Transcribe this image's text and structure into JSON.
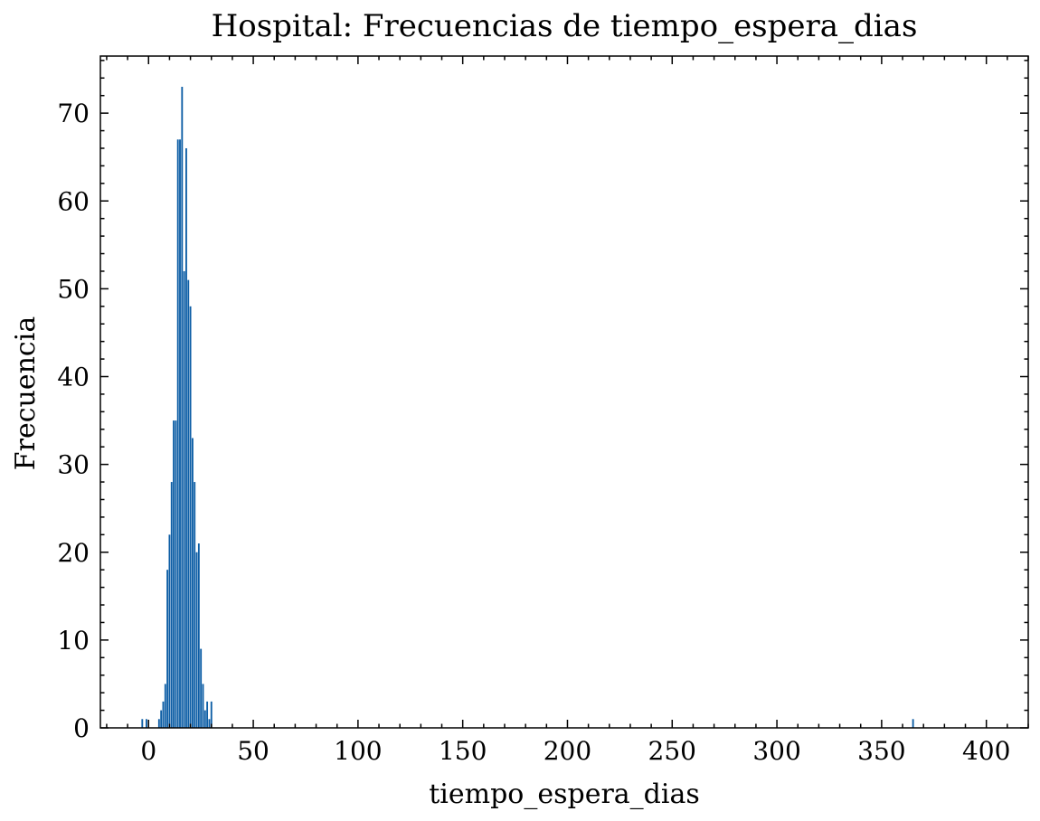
{
  "chart_data": {
    "type": "bar",
    "title": "Hospital: Frecuencias de tiempo_espera_dias",
    "xlabel": "tiempo_espera_dias",
    "ylabel": "Frecuencia",
    "xlim": [
      -23,
      420
    ],
    "ylim": [
      0,
      76.5
    ],
    "xticks": [
      0,
      50,
      100,
      150,
      200,
      250,
      300,
      350,
      400
    ],
    "xtick_labels": [
      "0",
      "50",
      "100",
      "150",
      "200",
      "250",
      "300",
      "350",
      "400"
    ],
    "yticks": [
      0,
      10,
      20,
      30,
      40,
      50,
      60,
      70
    ],
    "ytick_labels": [
      "0",
      "10",
      "20",
      "30",
      "40",
      "50",
      "60",
      "70"
    ],
    "grid": false,
    "bar_color": "#0C5DA5",
    "x": [
      -3,
      -1,
      5,
      6,
      7,
      8,
      9,
      10,
      11,
      12,
      13,
      14,
      15,
      16,
      17,
      18,
      19,
      20,
      21,
      22,
      23,
      24,
      25,
      26,
      27,
      28,
      29,
      30,
      365
    ],
    "values": [
      1,
      1,
      1,
      2,
      3,
      5,
      18,
      22,
      28,
      35,
      35,
      67,
      67,
      73,
      52,
      66,
      51,
      48,
      33,
      28,
      20,
      21,
      9,
      5,
      2,
      3,
      1,
      3,
      1
    ]
  }
}
